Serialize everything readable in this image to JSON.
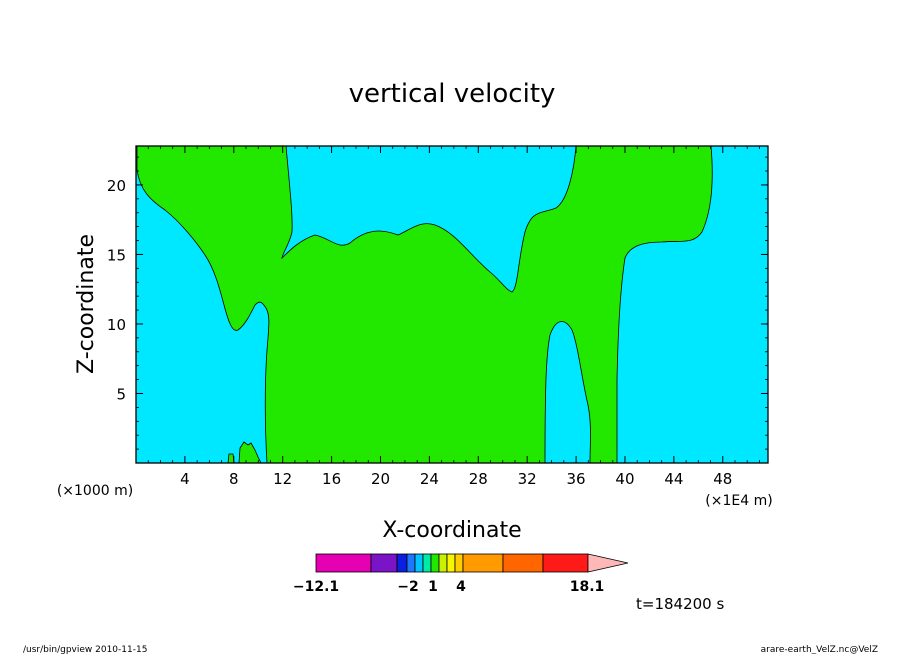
{
  "chart_data": {
    "type": "contour",
    "title": "vertical velocity",
    "xlabel": "X-coordinate",
    "ylabel": "Z-coordinate",
    "x_scale_label": "(×1000 m)",
    "x_unit_label": "(×1E4 m)",
    "xlim": [
      0,
      51.7
    ],
    "ylim": [
      0,
      22.8
    ],
    "x_ticks": [
      4,
      8,
      12,
      16,
      20,
      24,
      28,
      32,
      36,
      40,
      44,
      48
    ],
    "y_ticks": [
      5,
      10,
      15,
      20
    ],
    "regions": [
      {
        "level": "negative",
        "color": "#00e8ff"
      },
      {
        "level": "positive",
        "color": "#22e800"
      }
    ],
    "colorbar": {
      "min_label": "−12.1",
      "max_label": "18.1",
      "tick_labels": [
        "−2",
        "1",
        "4"
      ],
      "colors": [
        "#e600b3",
        "#7a14c6",
        "#0a1fe0",
        "#1e78ff",
        "#00c3ff",
        "#00eaa6",
        "#22e800",
        "#c9f000",
        "#f7f500",
        "#ffcc00",
        "#ff9a00",
        "#ff6600",
        "#ff1a1a",
        "#ff7b7b",
        "#ffb8b8"
      ]
    },
    "time_label": "t=184200 s"
  },
  "footer": {
    "left": "/usr/bin/gpview   2010-11-15",
    "right": "arare-earth_VelZ.nc@VelZ"
  }
}
